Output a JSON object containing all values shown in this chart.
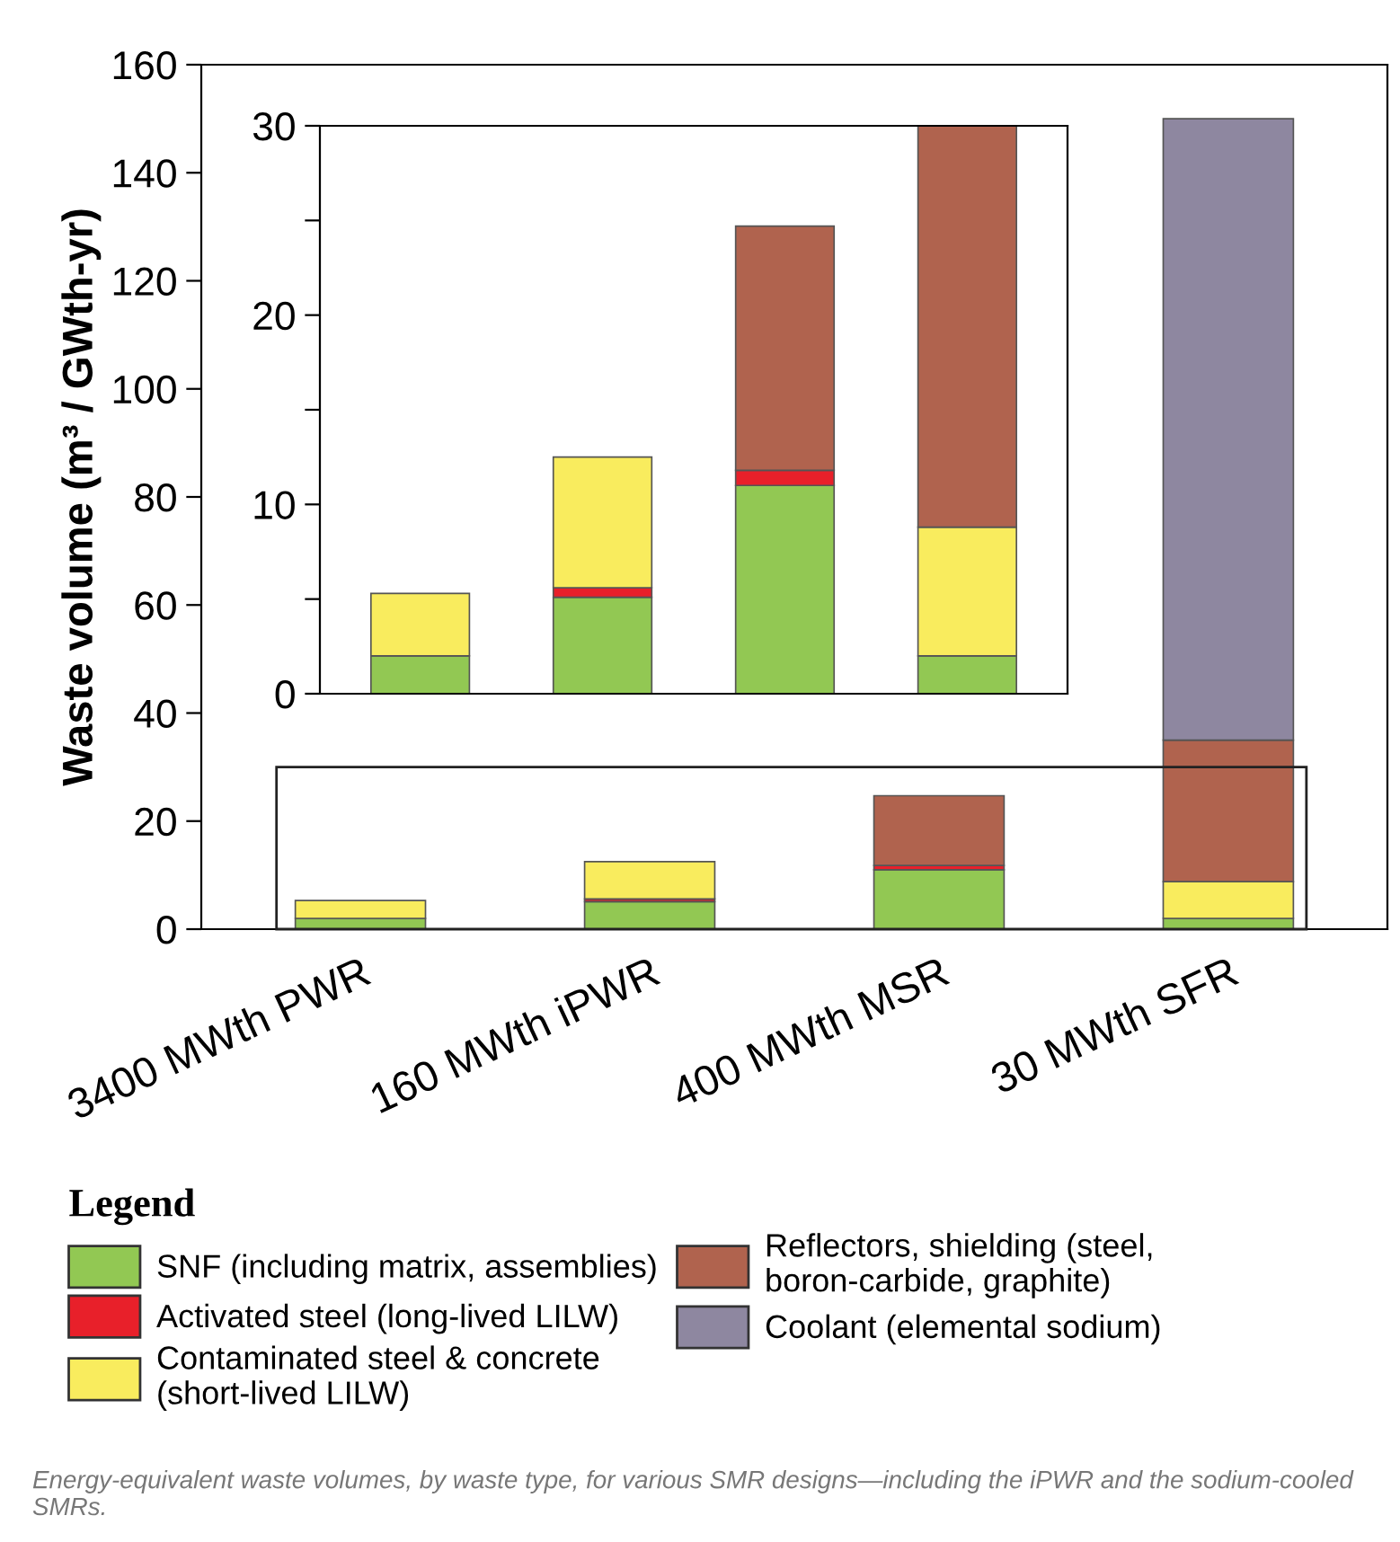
{
  "chart_data": [
    {
      "type": "bar",
      "stacked": true,
      "ylabel": "Waste volume (m³ / GWth-yr)",
      "legend_title": "Legend",
      "legend": "bottom",
      "categories": [
        "3400 MWth PWR",
        "160 MWth iPWR",
        "400 MWth MSR",
        "30 MWth SFR"
      ],
      "series": [
        {
          "name": "SNF (including matrix, assemblies)",
          "color": "#92c853",
          "values": [
            2.0,
            5.1,
            11.0,
            2.0
          ]
        },
        {
          "name": "Activated steel (long-lived LILW)",
          "color": "#e8202a",
          "values": [
            null,
            0.5,
            0.8,
            null
          ]
        },
        {
          "name": "Contaminated steel & concrete\n(short-lived LILW)",
          "color": "#f9ec5e",
          "values": [
            3.3,
            6.9,
            null,
            6.8
          ]
        },
        {
          "name": "Reflectors, shielding (steel,\nboron-carbide, graphite)",
          "color": "#b0634e",
          "values": [
            null,
            null,
            12.9,
            26.2
          ]
        },
        {
          "name": "Coolant (elemental sodium)",
          "color": "#8e87a0",
          "values": [
            null,
            null,
            null,
            115
          ]
        }
      ],
      "ylim": [
        0,
        160
      ],
      "yticks": [
        0,
        20,
        40,
        60,
        80,
        100,
        120,
        140,
        160
      ],
      "annotations": [
        "Energy-equivalent waste volumes, by waste type, for various SMR designs—including the iPWR and the sodium-cooled SMRs."
      ]
    },
    {
      "type": "bar",
      "stacked": true,
      "tick_labels": "y",
      "categories": [
        null,
        null,
        null,
        null
      ],
      "series": [
        {
          "color": "#92c853",
          "values": [
            2.0,
            5.1,
            11.0,
            2.0
          ]
        },
        {
          "color": "#e8202a",
          "values": [
            null,
            0.5,
            0.8,
            null
          ]
        },
        {
          "color": "#f9ec5e",
          "values": [
            3.3,
            6.9,
            null,
            6.8
          ]
        },
        {
          "color": "#b0634e",
          "values": [
            null,
            null,
            12.9,
            21.2
          ]
        }
      ],
      "ylim": [
        0,
        30
      ],
      "yticks": [
        0,
        {
          "value": 5,
          "label": null
        },
        10,
        {
          "value": 15,
          "label": null
        },
        20,
        {
          "value": 25,
          "label": null
        },
        30
      ]
    }
  ]
}
